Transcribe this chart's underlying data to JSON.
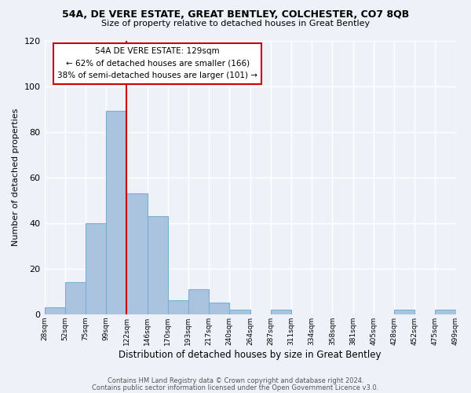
{
  "title1": "54A, DE VERE ESTATE, GREAT BENTLEY, COLCHESTER, CO7 8QB",
  "title2": "Size of property relative to detached houses in Great Bentley",
  "xlabel": "Distribution of detached houses by size in Great Bentley",
  "ylabel": "Number of detached properties",
  "bar_values": [
    3,
    14,
    40,
    89,
    53,
    43,
    6,
    11,
    5,
    2,
    0,
    2,
    0,
    0,
    0,
    0,
    0,
    2,
    0,
    2
  ],
  "bin_labels": [
    "28sqm",
    "52sqm",
    "75sqm",
    "99sqm",
    "122sqm",
    "146sqm",
    "170sqm",
    "193sqm",
    "217sqm",
    "240sqm",
    "264sqm",
    "287sqm",
    "311sqm",
    "334sqm",
    "358sqm",
    "381sqm",
    "405sqm",
    "428sqm",
    "452sqm",
    "475sqm",
    "499sqm"
  ],
  "bar_color": "#aac4e0",
  "bar_edge_color": "#7aafd4",
  "vline_color": "#cc0000",
  "annotation_title": "54A DE VERE ESTATE: 129sqm",
  "annotation_line1": "← 62% of detached houses are smaller (166)",
  "annotation_line2": "38% of semi-detached houses are larger (101) →",
  "box_color": "#ffffff",
  "box_edge_color": "#cc0000",
  "ylim": [
    0,
    120
  ],
  "footer1": "Contains HM Land Registry data © Crown copyright and database right 2024.",
  "footer2": "Contains public sector information licensed under the Open Government Licence v3.0.",
  "bg_color": "#eef2f8"
}
